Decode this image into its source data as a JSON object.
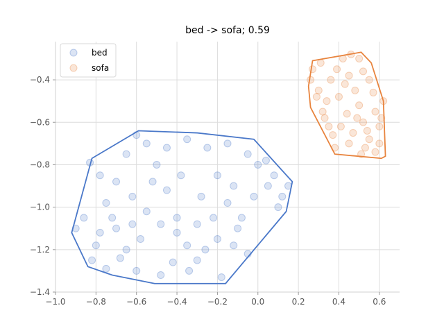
{
  "chart_data": {
    "type": "scatter",
    "title": "bed -> sofa; 0.59",
    "xlabel": "",
    "ylabel": "",
    "xlim": [
      -1.0,
      0.7
    ],
    "ylim": [
      -1.4,
      -0.22
    ],
    "xticks": [
      -1.0,
      -0.8,
      -0.6,
      -0.4,
      -0.2,
      0.0,
      0.2,
      0.4,
      0.6
    ],
    "xtick_labels": [
      "−1.0",
      "−0.8",
      "−0.6",
      "−0.4",
      "−0.2",
      "0.0",
      "0.2",
      "0.4",
      "0.6"
    ],
    "yticks": [
      -1.4,
      -1.2,
      -1.0,
      -0.8,
      -0.6,
      -0.4
    ],
    "ytick_labels": [
      "−1.4",
      "−1.2",
      "−1.0",
      "−0.8",
      "−0.6",
      "−0.4"
    ],
    "grid": true,
    "legend_position": "top-left",
    "series": [
      {
        "name": "bed",
        "color": "#4a78c9",
        "hull": [
          [
            -0.92,
            -1.12
          ],
          [
            -0.82,
            -0.77
          ],
          [
            -0.59,
            -0.64
          ],
          [
            -0.3,
            -0.65
          ],
          [
            -0.02,
            -0.68
          ],
          [
            0.17,
            -0.88
          ],
          [
            0.14,
            -1.02
          ],
          [
            -0.16,
            -1.36
          ],
          [
            -0.51,
            -1.36
          ],
          [
            -0.72,
            -1.32
          ],
          [
            -0.84,
            -1.28
          ]
        ],
        "points": [
          [
            -0.9,
            -1.1
          ],
          [
            -0.86,
            -1.05
          ],
          [
            -0.83,
            -0.79
          ],
          [
            -0.78,
            -0.85
          ],
          [
            -0.75,
            -0.98
          ],
          [
            -0.7,
            -1.1
          ],
          [
            -0.65,
            -1.2
          ],
          [
            -0.6,
            -1.3
          ],
          [
            -0.55,
            -0.7
          ],
          [
            -0.5,
            -0.8
          ],
          [
            -0.45,
            -0.92
          ],
          [
            -0.4,
            -1.05
          ],
          [
            -0.35,
            -1.18
          ],
          [
            -0.3,
            -1.25
          ],
          [
            -0.25,
            -0.72
          ],
          [
            -0.2,
            -0.85
          ],
          [
            -0.15,
            -0.98
          ],
          [
            -0.1,
            -1.1
          ],
          [
            -0.05,
            -1.22
          ],
          [
            0.0,
            -0.8
          ],
          [
            0.05,
            -0.9
          ],
          [
            0.1,
            -1.0
          ],
          [
            0.15,
            -0.9
          ],
          [
            -0.6,
            -0.66
          ],
          [
            -0.65,
            -0.75
          ],
          [
            -0.7,
            -0.88
          ],
          [
            -0.8,
            -1.18
          ],
          [
            -0.82,
            -1.25
          ],
          [
            -0.75,
            -1.29
          ],
          [
            -0.68,
            -1.24
          ],
          [
            -0.58,
            -1.15
          ],
          [
            -0.48,
            -1.32
          ],
          [
            -0.42,
            -1.26
          ],
          [
            -0.34,
            -1.3
          ],
          [
            -0.26,
            -1.2
          ],
          [
            -0.18,
            -1.33
          ],
          [
            -0.12,
            -1.18
          ],
          [
            -0.08,
            -1.05
          ],
          [
            -0.02,
            -0.95
          ],
          [
            0.04,
            -0.78
          ],
          [
            0.08,
            -0.85
          ],
          [
            0.12,
            -0.95
          ],
          [
            -0.15,
            -0.7
          ],
          [
            -0.35,
            -0.68
          ],
          [
            -0.45,
            -0.72
          ],
          [
            -0.52,
            -0.88
          ],
          [
            -0.62,
            -0.95
          ],
          [
            -0.72,
            -1.05
          ],
          [
            -0.78,
            -1.12
          ],
          [
            -0.55,
            -1.02
          ],
          [
            -0.38,
            -0.85
          ],
          [
            -0.28,
            -0.95
          ],
          [
            -0.22,
            -1.05
          ],
          [
            -0.12,
            -0.9
          ],
          [
            -0.05,
            -0.75
          ],
          [
            -0.4,
            -1.12
          ],
          [
            -0.3,
            -1.08
          ],
          [
            -0.2,
            -1.15
          ],
          [
            -0.48,
            -1.08
          ],
          [
            -0.62,
            -1.08
          ]
        ]
      },
      {
        "name": "sofa",
        "color": "#e8843e",
        "hull": [
          [
            0.25,
            -0.43
          ],
          [
            0.27,
            -0.31
          ],
          [
            0.51,
            -0.27
          ],
          [
            0.56,
            -0.32
          ],
          [
            0.62,
            -0.5
          ],
          [
            0.63,
            -0.76
          ],
          [
            0.61,
            -0.77
          ],
          [
            0.38,
            -0.75
          ],
          [
            0.26,
            -0.53
          ]
        ],
        "points": [
          [
            0.26,
            -0.4
          ],
          [
            0.27,
            -0.35
          ],
          [
            0.3,
            -0.45
          ],
          [
            0.32,
            -0.55
          ],
          [
            0.35,
            -0.62
          ],
          [
            0.38,
            -0.72
          ],
          [
            0.42,
            -0.3
          ],
          [
            0.45,
            -0.38
          ],
          [
            0.48,
            -0.45
          ],
          [
            0.5,
            -0.52
          ],
          [
            0.52,
            -0.6
          ],
          [
            0.55,
            -0.68
          ],
          [
            0.58,
            -0.74
          ],
          [
            0.6,
            -0.62
          ],
          [
            0.62,
            -0.5
          ],
          [
            0.55,
            -0.4
          ],
          [
            0.5,
            -0.3
          ],
          [
            0.4,
            -0.48
          ],
          [
            0.36,
            -0.4
          ],
          [
            0.44,
            -0.56
          ],
          [
            0.47,
            -0.65
          ],
          [
            0.53,
            -0.72
          ],
          [
            0.58,
            -0.55
          ],
          [
            0.31,
            -0.32
          ],
          [
            0.34,
            -0.5
          ],
          [
            0.41,
            -0.62
          ],
          [
            0.46,
            -0.28
          ],
          [
            0.52,
            -0.36
          ],
          [
            0.57,
            -0.46
          ],
          [
            0.6,
            -0.7
          ],
          [
            0.39,
            -0.35
          ],
          [
            0.43,
            -0.42
          ],
          [
            0.49,
            -0.58
          ],
          [
            0.54,
            -0.64
          ],
          [
            0.29,
            -0.48
          ],
          [
            0.33,
            -0.58
          ],
          [
            0.37,
            -0.66
          ],
          [
            0.45,
            -0.7
          ],
          [
            0.51,
            -0.75
          ],
          [
            0.61,
            -0.58
          ]
        ]
      }
    ]
  }
}
